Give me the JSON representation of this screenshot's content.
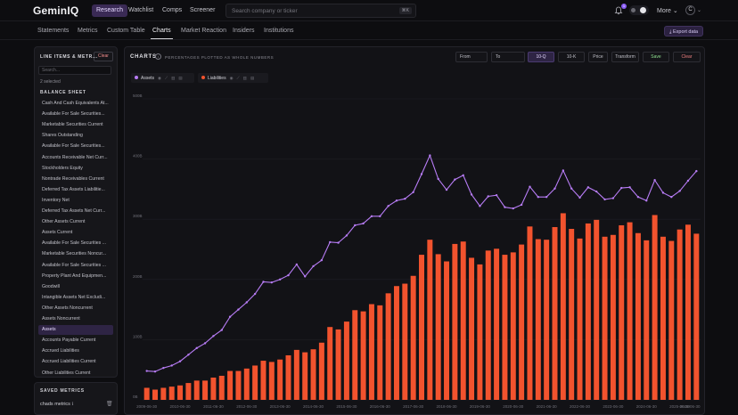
{
  "app": {
    "logo": "GeminIQ"
  },
  "nav": {
    "research": "Research",
    "watchlist": "Watchlist",
    "comps": "Comps",
    "screener": "Screener",
    "more": "More ⌄"
  },
  "search": {
    "placeholder": "Search company or ticker",
    "shortcut": "⌘K"
  },
  "notifications": {
    "count": "1"
  },
  "user": {
    "initial": "C"
  },
  "tabs": {
    "statements": "Statements",
    "metrics": "Metrics",
    "custom_table": "Custom Table",
    "charts": "Charts",
    "market_reaction": "Market Reaction",
    "insiders": "Insiders",
    "institutions": "Institutions"
  },
  "export_label": "Export data",
  "sidebar": {
    "title": "LINE ITEMS & METR...",
    "clear": "Clear",
    "search_placeholder": "Search...",
    "selected": "2 selected",
    "section": "BALANCE SHEET",
    "items": [
      "Cash And Cash Equivalents At...",
      "Available For Sale Securities...",
      "Marketable Securities Current",
      "Shares Outstanding",
      "Available For Sale Securities...",
      "Accounts Receivable Net Curr...",
      "Stockholders Equity",
      "Nontrade Receivables Current",
      "Deferred Tax Assets Liabilitie...",
      "Inventory Net",
      "Deferred Tax Assets Net Curr...",
      "Other Assets Current",
      "Assets Current",
      "Available For Sale Securities ...",
      "Marketable Securities Noncur...",
      "Available For Sale Securities ...",
      "Property Plant And Equipmen...",
      "Goodwill",
      "Intangible Assets Net Excludi...",
      "Other Assets Noncurrent",
      "Assets Noncurrent",
      "Assets",
      "Accounts Payable Current",
      "Accrued Liabilities",
      "Accrued Liabilities Current",
      "Other Liabilities Current"
    ],
    "active_index": 21
  },
  "saved": {
    "title": "SAVED METRICS",
    "item": "chads metrics"
  },
  "chart_panel": {
    "title": "CHARTS",
    "note": "PERCENTAGES PLOTTED AS WHOLE NUMBERS",
    "from": "From",
    "to": "To",
    "period_q": "10-Q",
    "period_k": "10-K",
    "price": "Price",
    "transform": "Transform",
    "save": "Save",
    "clear": "Clear",
    "chip_assets": "Assets",
    "chip_liabilities": "Liabilities"
  },
  "colors": {
    "assets": "#b77cf5",
    "liabilities": "#f2532e",
    "accent": "#8a5cf5"
  },
  "chart_data": {
    "type": "bar",
    "x": [
      "2009-06-30",
      "2009-09-30",
      "2009-12-31",
      "2010-03-31",
      "2010-06-30",
      "2010-09-30",
      "2010-12-31",
      "2011-03-31",
      "2011-06-30",
      "2011-09-30",
      "2011-12-31",
      "2012-03-31",
      "2012-06-30",
      "2012-09-30",
      "2012-12-31",
      "2013-03-31",
      "2013-06-30",
      "2013-09-30",
      "2013-12-31",
      "2014-03-31",
      "2014-06-30",
      "2014-09-30",
      "2014-12-31",
      "2015-03-31",
      "2015-06-30",
      "2015-09-30",
      "2015-12-31",
      "2016-03-31",
      "2016-06-30",
      "2016-09-30",
      "2016-12-31",
      "2017-03-31",
      "2017-06-30",
      "2017-09-30",
      "2017-12-31",
      "2018-03-31",
      "2018-06-30",
      "2018-09-30",
      "2018-12-31",
      "2019-03-31",
      "2019-06-30",
      "2019-09-30",
      "2019-12-31",
      "2020-03-31",
      "2020-06-30",
      "2020-09-30",
      "2020-12-31",
      "2021-03-31",
      "2021-06-30",
      "2021-09-30",
      "2021-12-31",
      "2022-03-31",
      "2022-06-30",
      "2022-09-30",
      "2022-12-31",
      "2023-03-31",
      "2023-06-30",
      "2023-09-30",
      "2023-12-31",
      "2024-03-31",
      "2024-06-30",
      "2024-09-30",
      "2024-12-31",
      "2025-03-31",
      "2025-06-30",
      "2025-09-30",
      "2025-12-31"
    ],
    "xticks": [
      "2009-06-30",
      "2010-06-30",
      "2011-06-30",
      "2012-06-30",
      "2013-06-30",
      "2014-06-30",
      "2015-06-30",
      "2016-06-30",
      "2017-06-30",
      "2018-06-30",
      "2019-06-30",
      "2020-06-30",
      "2021-06-30",
      "2022-06-30",
      "2023-06-30",
      "2024-06-30",
      "2025-06-30",
      "2026-06-30"
    ],
    "yticks": [
      "0B",
      "100B",
      "200B",
      "300B",
      "400B",
      "500B"
    ],
    "ylim": [
      0,
      500
    ],
    "series": [
      {
        "name": "Assets",
        "type": "line",
        "values": [
          48,
          47,
          53,
          57,
          64,
          75,
          86,
          94,
          106,
          116,
          138,
          150,
          162,
          176,
          196,
          195,
          200,
          207,
          225,
          205,
          222,
          232,
          262,
          261,
          273,
          290,
          293,
          305,
          305,
          322,
          331,
          334,
          345,
          375,
          406,
          367,
          349,
          366,
          373,
          341,
          322,
          338,
          340,
          320,
          318,
          324,
          354,
          337,
          337,
          351,
          381,
          351,
          336,
          353,
          346,
          333,
          335,
          352,
          353,
          337,
          331,
          365,
          344,
          337,
          347,
          364,
          380
        ]
      },
      {
        "name": "Liabilities",
        "type": "bar",
        "values": [
          20,
          17,
          20,
          22,
          24,
          28,
          32,
          32,
          37,
          40,
          48,
          48,
          52,
          57,
          65,
          63,
          67,
          74,
          83,
          79,
          84,
          95,
          121,
          117,
          130,
          149,
          147,
          159,
          157,
          177,
          189,
          193,
          206,
          241,
          266,
          242,
          230,
          259,
          263,
          236,
          225,
          248,
          251,
          241,
          245,
          258,
          288,
          267,
          266,
          287,
          310,
          284,
          268,
          293,
          299,
          271,
          274,
          290,
          295,
          277,
          265,
          307,
          271,
          264,
          283,
          291,
          276
        ]
      }
    ]
  }
}
